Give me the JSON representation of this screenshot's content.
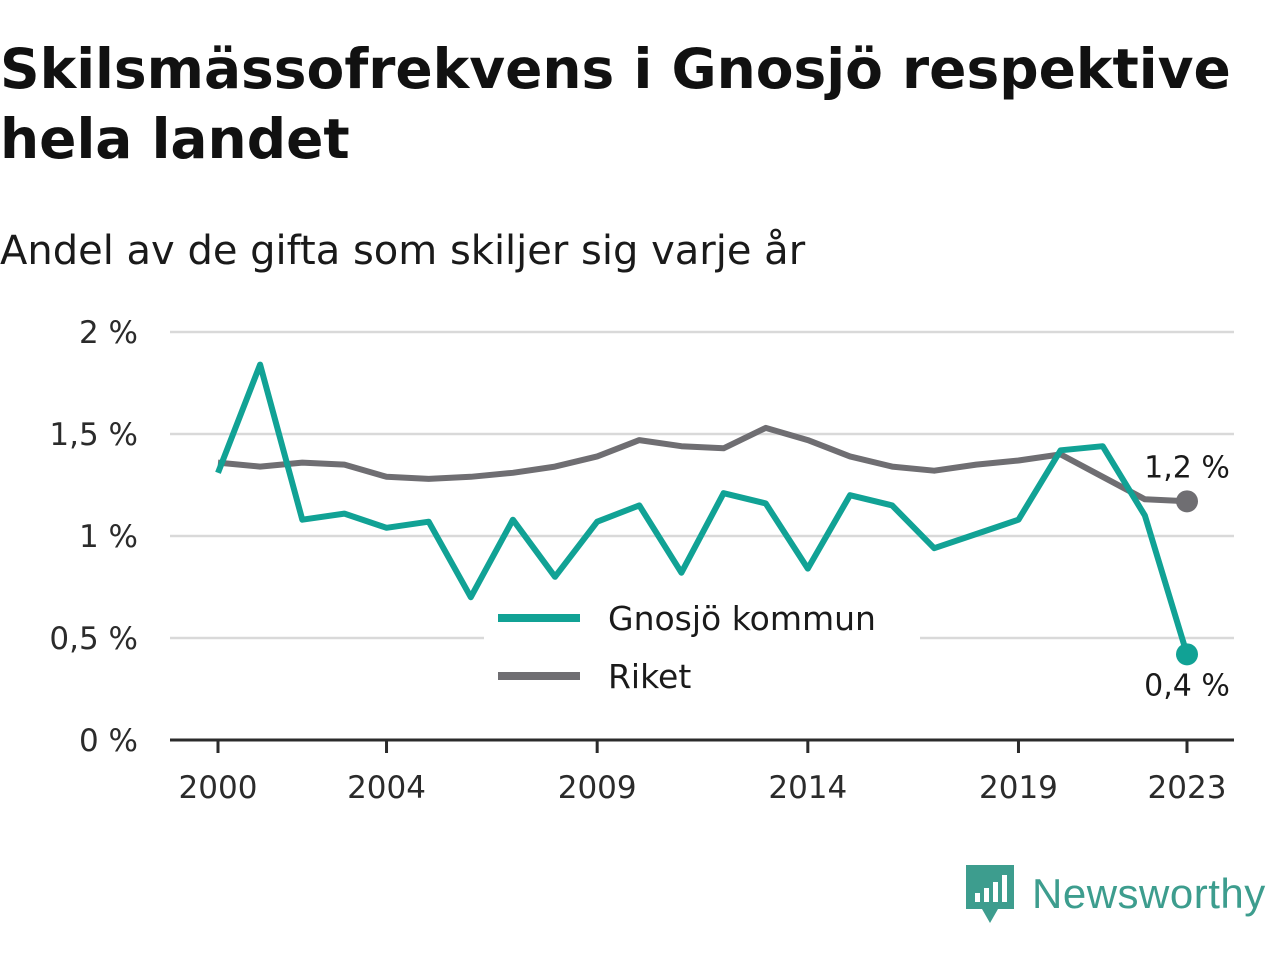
{
  "title": "Skilsmässofrekvens i Gnosjö respektive hela landet",
  "subtitle": "Andel av de gifta som skiljer sig varje år",
  "brand": {
    "name": "Newsworthy",
    "color": "#3d9d8e",
    "icon": "newsworthy-logo-icon"
  },
  "chart_data": {
    "type": "line",
    "title": "Skilsmässofrekvens i Gnosjö respektive hela landet",
    "subtitle": "Andel av de gifta som skiljer sig varje år",
    "xlabel": "",
    "ylabel": "",
    "x": [
      2000,
      2001,
      2002,
      2003,
      2004,
      2005,
      2006,
      2007,
      2008,
      2009,
      2010,
      2011,
      2012,
      2013,
      2014,
      2015,
      2016,
      2017,
      2018,
      2019,
      2020,
      2021,
      2022,
      2023
    ],
    "x_ticks": [
      {
        "value": 2000,
        "label": "2000"
      },
      {
        "value": 2004,
        "label": "2004"
      },
      {
        "value": 2009,
        "label": "2009"
      },
      {
        "value": 2014,
        "label": "2014"
      },
      {
        "value": 2019,
        "label": "2019"
      },
      {
        "value": 2023,
        "label": "2023"
      }
    ],
    "y_ticks": [
      {
        "value": 0,
        "label": "0 %"
      },
      {
        "value": 0.5,
        "label": "0,5 %"
      },
      {
        "value": 1,
        "label": "1 %"
      },
      {
        "value": 1.5,
        "label": "1,5 %"
      },
      {
        "value": 2,
        "label": "2 %"
      }
    ],
    "ylim": [
      0,
      2
    ],
    "grid": "horizontal",
    "legend_position": "bottom-center",
    "series": [
      {
        "name": "Gnosjö kommun",
        "color": "#11a295",
        "values": [
          1.31,
          1.84,
          1.08,
          1.11,
          1.04,
          1.07,
          0.7,
          1.08,
          0.8,
          1.07,
          1.15,
          0.82,
          1.21,
          1.16,
          0.84,
          1.2,
          1.15,
          0.94,
          1.01,
          1.08,
          1.42,
          1.44,
          1.1,
          0.42
        ],
        "end_label": "0,4 %"
      },
      {
        "name": "Riket",
        "color": "#6f6e72",
        "values": [
          1.36,
          1.34,
          1.36,
          1.35,
          1.29,
          1.28,
          1.29,
          1.31,
          1.34,
          1.39,
          1.47,
          1.44,
          1.43,
          1.53,
          1.47,
          1.39,
          1.34,
          1.32,
          1.35,
          1.37,
          1.4,
          1.29,
          1.18,
          1.17
        ],
        "end_label": "1,2 %"
      }
    ]
  }
}
